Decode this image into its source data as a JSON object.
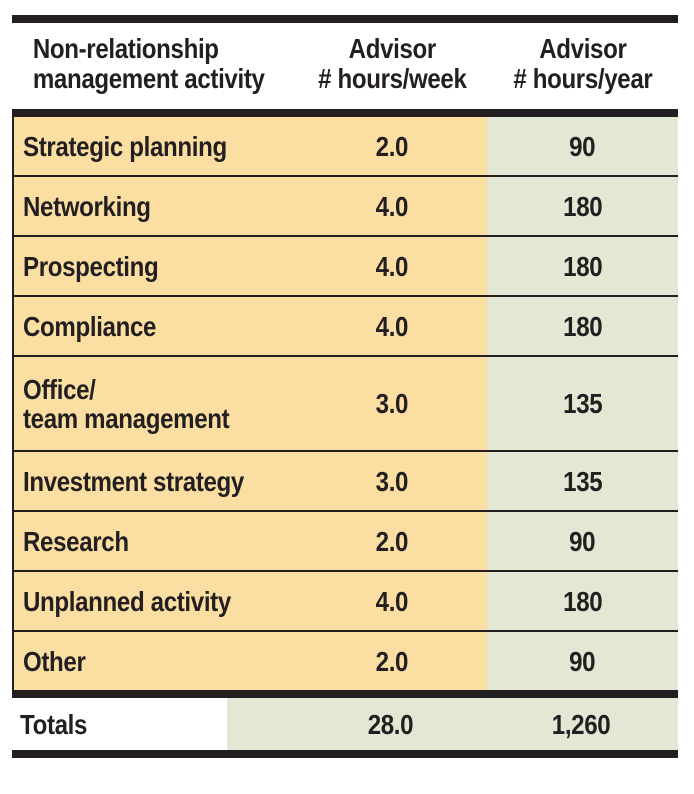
{
  "chart_data": {
    "type": "table",
    "columns": [
      "Non-relationship\nmanagement activity",
      "Advisor\n# hours/week",
      "Advisor\n# hours/year"
    ],
    "rows": [
      {
        "activity": "Strategic planning",
        "hours_per_week": "2.0",
        "hours_per_year": "90"
      },
      {
        "activity": "Networking",
        "hours_per_week": "4.0",
        "hours_per_year": "180"
      },
      {
        "activity": "Prospecting",
        "hours_per_week": "4.0",
        "hours_per_year": "180"
      },
      {
        "activity": "Compliance",
        "hours_per_week": "4.0",
        "hours_per_year": "180"
      },
      {
        "activity": "Office/\nteam management",
        "hours_per_week": "3.0",
        "hours_per_year": "135"
      },
      {
        "activity": "Investment strategy",
        "hours_per_week": "3.0",
        "hours_per_year": "135"
      },
      {
        "activity": "Research",
        "hours_per_week": "2.0",
        "hours_per_year": "90"
      },
      {
        "activity": "Unplanned activity",
        "hours_per_week": "4.0",
        "hours_per_year": "180"
      },
      {
        "activity": "Other",
        "hours_per_week": "2.0",
        "hours_per_year": "90"
      }
    ],
    "totals": {
      "label": "Totals",
      "hours_per_week": "28.0",
      "hours_per_year": "1,260"
    },
    "layout": "first two columns share an orange background, third column light green; totals row white label with green value band; heavy black rules at top, under header, above totals and at bottom"
  },
  "colors": {
    "column_orange": "#FBDEA2",
    "column_green": "#E2E8D3",
    "ink_black": "#231F20",
    "background": "#FFFFFF"
  }
}
